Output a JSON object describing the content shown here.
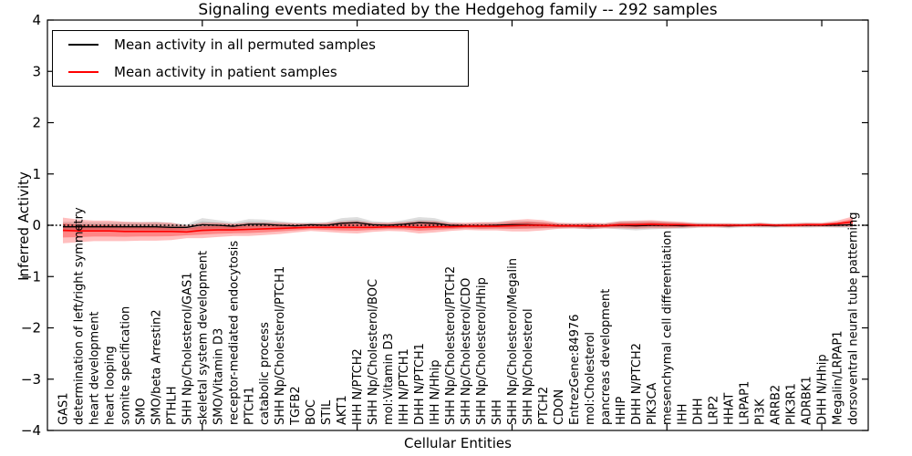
{
  "chart_data": {
    "type": "line",
    "title": "Signaling events mediated by the Hedgehog family -- 292 samples",
    "xlabel": "Cellular Entities",
    "ylabel": "Inferred Activity",
    "ylim": [
      -4,
      4
    ],
    "ytick_values": [
      4,
      3,
      2,
      1,
      0,
      -1,
      -2,
      -3,
      -4
    ],
    "ytick_labels": [
      "4",
      "3",
      "2",
      "1",
      "0",
      "−1",
      "−2",
      "−3",
      "−4"
    ],
    "grid": false,
    "zero_reference_line": {
      "y": 0,
      "style": "dotted",
      "color": "#000000"
    },
    "legend": {
      "position": "upper-left",
      "entries": [
        {
          "label": "Mean activity in all permuted samples",
          "color": "#000000"
        },
        {
          "label": "Mean activity in patient samples",
          "color": "#ff0000"
        }
      ]
    },
    "categories": [
      "GAS1",
      "determination of left/right symmetry",
      "heart development",
      "heart looping",
      "somite specification",
      "SMO",
      "SMO/beta Arrestin2",
      "PTHLH",
      "SHH Np/Cholesterol/GAS1",
      "skeletal system development",
      "SMO/Vitamin D3",
      "receptor-mediated endocytosis",
      "PTCH1",
      "catabolic process",
      "SHH Np/Cholesterol/PTCH1",
      "TGFB2",
      "BOC",
      "STIL",
      "AKT1",
      "IHH N/PTCH2",
      "SHH Np/Cholesterol/BOC",
      "mol:Vitamin D3",
      "IHH N/PTCH1",
      "DHH N/PTCH1",
      "IHH N/Hhip",
      "SHH Np/Cholesterol/PTCH2",
      "SHH Np/Cholesterol/CDO",
      "SHH Np/Cholesterol/Hhip",
      "SHH",
      "SHH Np/Cholesterol/Megalin",
      "SHH Np/Cholesterol",
      "PTCH2",
      "CDON",
      "EntrezGene:84976",
      "mol:Cholesterol",
      "pancreas development",
      "HHIP",
      "DHH N/PTCH2",
      "PIK3CA",
      "mesenchymal cell differentiation",
      "IHH",
      "DHH",
      "LRP2",
      "HHAT",
      "LRPAP1",
      "PI3K",
      "ARRB2",
      "PIK3R1",
      "ADRBK1",
      "DHH N/Hhip",
      "Megalin/LRPAP1",
      "dorsoventral neural tube patterning"
    ],
    "series": [
      {
        "name": "Mean activity in all permuted samples",
        "color": "#000000",
        "line_width": 1.3,
        "band_color": "#000000",
        "band_layers": [
          {
            "scale": 1.0,
            "alpha": 0.13
          },
          {
            "scale": 0.55,
            "alpha": 0.1
          }
        ],
        "values": [
          -0.03,
          -0.03,
          -0.03,
          -0.03,
          -0.03,
          -0.03,
          -0.03,
          -0.04,
          -0.04,
          0.01,
          0.0,
          -0.02,
          0.02,
          0.02,
          0.0,
          -0.01,
          0.01,
          0.0,
          0.04,
          0.05,
          0.01,
          0.0,
          0.02,
          0.05,
          0.04,
          0.0,
          -0.01,
          -0.01,
          0.0,
          0.01,
          0.01,
          0.0,
          -0.01,
          -0.01,
          -0.02,
          -0.01,
          0.0,
          -0.01,
          0.0,
          0.0,
          -0.01,
          0.0,
          0.0,
          -0.01,
          0.0,
          0.0,
          -0.01,
          0.0,
          0.0,
          0.0,
          0.0,
          0.01
        ],
        "band_halfwidth": [
          0.1,
          0.1,
          0.09,
          0.09,
          0.09,
          0.09,
          0.1,
          0.09,
          0.06,
          0.13,
          0.1,
          0.08,
          0.1,
          0.09,
          0.08,
          0.06,
          0.05,
          0.06,
          0.1,
          0.11,
          0.07,
          0.06,
          0.08,
          0.11,
          0.1,
          0.06,
          0.05,
          0.06,
          0.06,
          0.07,
          0.07,
          0.06,
          0.05,
          0.05,
          0.06,
          0.05,
          0.08,
          0.09,
          0.08,
          0.07,
          0.06,
          0.05,
          0.04,
          0.05,
          0.04,
          0.05,
          0.04,
          0.04,
          0.05,
          0.04,
          0.05,
          0.06
        ]
      },
      {
        "name": "Mean activity in patient samples",
        "color": "#ff0000",
        "line_width": 1.6,
        "band_color": "#ff0000",
        "band_layers": [
          {
            "scale": 1.0,
            "alpha": 0.25
          },
          {
            "scale": 0.55,
            "alpha": 0.3
          }
        ],
        "values": [
          -0.1,
          -0.11,
          -0.11,
          -0.11,
          -0.12,
          -0.12,
          -0.12,
          -0.12,
          -0.13,
          -0.1,
          -0.09,
          -0.09,
          -0.08,
          -0.07,
          -0.06,
          -0.05,
          -0.04,
          -0.04,
          -0.04,
          -0.04,
          -0.04,
          -0.03,
          -0.03,
          -0.04,
          -0.03,
          -0.03,
          -0.02,
          -0.02,
          -0.02,
          -0.01,
          0.0,
          0.0,
          -0.01,
          -0.01,
          -0.01,
          -0.01,
          0.01,
          0.01,
          0.02,
          0.01,
          0.01,
          0.0,
          0.0,
          0.0,
          0.0,
          0.01,
          0.0,
          0.0,
          0.01,
          0.01,
          0.03,
          0.07
        ],
        "band_halfwidth": [
          0.25,
          0.22,
          0.2,
          0.2,
          0.19,
          0.18,
          0.18,
          0.17,
          0.12,
          0.15,
          0.14,
          0.12,
          0.13,
          0.12,
          0.11,
          0.09,
          0.07,
          0.09,
          0.11,
          0.12,
          0.09,
          0.08,
          0.09,
          0.12,
          0.11,
          0.08,
          0.07,
          0.08,
          0.08,
          0.11,
          0.12,
          0.1,
          0.06,
          0.05,
          0.06,
          0.05,
          0.07,
          0.08,
          0.08,
          0.07,
          0.06,
          0.04,
          0.04,
          0.04,
          0.03,
          0.04,
          0.03,
          0.04,
          0.04,
          0.04,
          0.06,
          0.1
        ]
      }
    ]
  }
}
